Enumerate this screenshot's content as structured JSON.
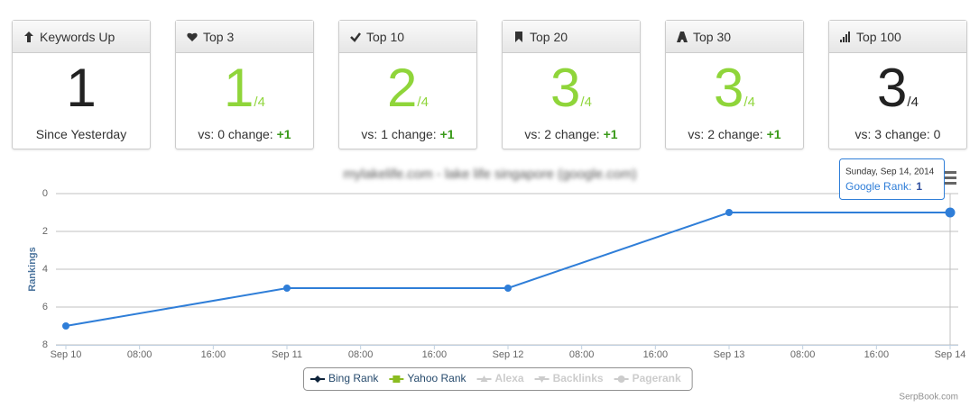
{
  "cards": [
    {
      "title": "Keywords Up",
      "value": 1,
      "footer": "Since Yesterday",
      "color": "#222222"
    },
    {
      "title": "Top 3",
      "value": 1,
      "out_of": "/4",
      "comparison": "vs: 0 change:",
      "change": "+1",
      "color": "#8fd53a"
    },
    {
      "title": "Top 10",
      "value": 2,
      "out_of": "/4",
      "comparison": "vs: 1 change:",
      "change": "+1",
      "color": "#8fd53a"
    },
    {
      "title": "Top 20",
      "value": 3,
      "out_of": "/4",
      "comparison": "vs: 2 change:",
      "change": "+1",
      "color": "#8fd53a"
    },
    {
      "title": "Top 30",
      "value": 3,
      "out_of": "/4",
      "comparison": "vs: 2 change:",
      "change": "+1",
      "color": "#8fd53a"
    },
    {
      "title": "Top 100",
      "value": 3,
      "out_of": "/4",
      "comparison": "vs: 3 change: 0",
      "color": "#222222"
    }
  ],
  "chart_data": {
    "type": "line",
    "title": "mylakelife.com - lake life singapore (google.com)",
    "y_label": "Rankings",
    "reversed_y": true,
    "x": [
      0,
      24,
      48,
      72,
      96
    ],
    "series": [
      {
        "color": "#2f7ed8",
        "values": [
          7,
          5,
          5,
          1,
          1
        ]
      }
    ],
    "xlim": [
      0,
      96
    ],
    "xticks": [
      {
        "value": 0,
        "label": "Sep 10"
      },
      {
        "value": 8,
        "label": "08:00"
      },
      {
        "value": 16,
        "label": "16:00"
      },
      {
        "value": 24,
        "label": "Sep 11"
      },
      {
        "value": 32,
        "label": "08:00"
      },
      {
        "value": 40,
        "label": "16:00"
      },
      {
        "value": 48,
        "label": "Sep 12"
      },
      {
        "value": 56,
        "label": "08:00"
      },
      {
        "value": 64,
        "label": "16:00"
      },
      {
        "value": 72,
        "label": "Sep 13"
      },
      {
        "value": 80,
        "label": "08:00"
      },
      {
        "value": 88,
        "label": "16:00"
      },
      {
        "value": 96,
        "label": "Sep 14"
      }
    ],
    "ylim": [
      0,
      8
    ],
    "yticks": [
      0,
      2,
      4,
      6,
      8
    ],
    "grid": true,
    "legend": [
      {
        "name": "Bing Rank",
        "color": "#0d233a",
        "marker": "diamond",
        "visible": true
      },
      {
        "name": "Yahoo Rank",
        "color": "#8bbc21",
        "marker": "square",
        "visible": true
      },
      {
        "name": "Alexa",
        "color": "#cccccc",
        "marker": "triangle",
        "visible": false
      },
      {
        "name": "Backlinks",
        "color": "#cccccc",
        "marker": "triangle-down",
        "visible": false
      },
      {
        "name": "Pagerank",
        "color": "#cccccc",
        "marker": "circle",
        "visible": false
      }
    ],
    "tooltip": {
      "date": "Sunday, Sep 14, 2014",
      "series_label": "Google Rank:"
    },
    "credits": "SerpBook.com"
  }
}
